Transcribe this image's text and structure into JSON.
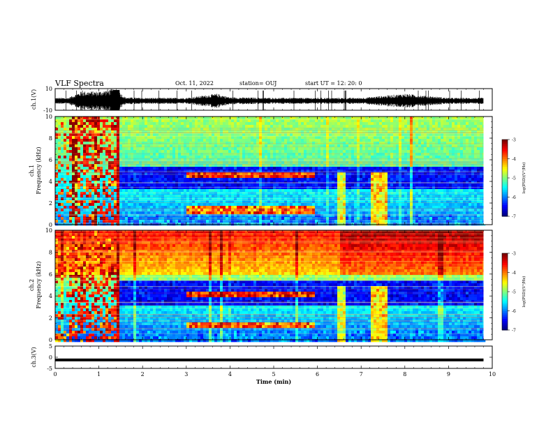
{
  "header": {
    "title": "VLF Spectra",
    "date": "Oct. 11, 2022",
    "station": "station= OUJ",
    "start_time": "start  UT  =   12: 20: 0"
  },
  "chart_data": [
    {
      "id": "ch1-waveform",
      "type": "line",
      "title": "",
      "xlabel": "",
      "ylabel": "ch.1(V)",
      "xlim": [
        0,
        10
      ],
      "ylim": [
        -10,
        10
      ],
      "yticks": [
        "-10",
        "10"
      ],
      "description": "waveform envelope",
      "x": [
        0.0,
        0.3,
        0.6,
        1.0,
        1.3,
        1.4,
        1.6,
        2.0,
        3.0,
        3.7,
        4.0,
        5.0,
        6.0,
        7.0,
        8.0,
        9.0,
        9.8
      ],
      "amplitude": [
        2.5,
        2.5,
        8.0,
        8.0,
        10.0,
        10.0,
        3.0,
        2.5,
        2.5,
        6.0,
        3.0,
        2.5,
        2.5,
        2.5,
        6.0,
        2.5,
        2.5
      ]
    },
    {
      "id": "ch1-spectrogram",
      "type": "heatmap",
      "ylabel": "ch.1\nFrequency (kHz)",
      "xlim": [
        0,
        10
      ],
      "ylim": [
        0,
        10
      ],
      "yticks": [
        "0",
        "2",
        "4",
        "6",
        "8",
        "10"
      ],
      "colorbar": {
        "label": "log(PSD)(V²/Hz)",
        "range": [
          -7,
          -3
        ],
        "ticks": [
          "-3",
          "-4",
          "-5",
          "-6",
          "-7"
        ]
      }
    },
    {
      "id": "ch2-spectrogram",
      "type": "heatmap",
      "ylabel": "ch.2\nFrequency (kHz)",
      "xlim": [
        0,
        10
      ],
      "ylim": [
        0,
        10
      ],
      "yticks": [
        "0",
        "2",
        "4",
        "6",
        "8",
        "10"
      ],
      "colorbar": {
        "label": "log(PSD)(V²/Hz)",
        "range": [
          -7,
          -3
        ],
        "ticks": [
          "-3",
          "-4",
          "-5",
          "-6",
          "-7"
        ]
      }
    },
    {
      "id": "ch3-waveform",
      "type": "line",
      "ylabel": "ch.3(V)",
      "xlabel": "Time  (min)",
      "xlim": [
        0,
        10
      ],
      "ylim": [
        -5,
        5
      ],
      "yticks": [
        "-5",
        "0",
        "5"
      ],
      "x": [
        0,
        9.8
      ],
      "y": [
        -1.2,
        -1.2
      ],
      "xticks": [
        "0",
        "1",
        "2",
        "3",
        "4",
        "5",
        "6",
        "7",
        "8",
        "9",
        "10"
      ]
    }
  ]
}
